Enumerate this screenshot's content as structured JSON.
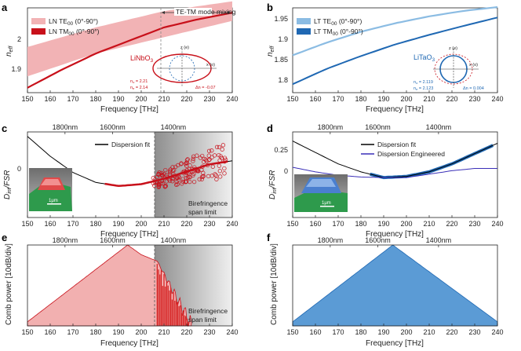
{
  "panels": {
    "a": {
      "letter": "a",
      "annotation": "TE-TM mode mixing",
      "material": "LiNbO",
      "material_sub": "3",
      "legend": [
        {
          "label": "LN TE",
          "sub": "00",
          "suffix": " (0°-90°)"
        },
        {
          "label": "LN TM",
          "sub": "00",
          "suffix": " (0°-90°)"
        }
      ],
      "no_label": "n",
      "no_sub": "o",
      "no_val": " = 2.21",
      "ne_label": "n",
      "ne_sub": "e",
      "ne_val": " = 2.14",
      "dn_label": "Δn = -0.07"
    },
    "b": {
      "letter": "b",
      "material": "LiTaO",
      "material_sub": "3",
      "legend": [
        {
          "label": "LT TE",
          "sub": "00",
          "suffix": " (0°-90°)"
        },
        {
          "label": "LT TM",
          "sub": "00",
          "suffix": " (0°-90°)"
        }
      ],
      "no_label": "n",
      "no_sub": "o",
      "no_val": " = 2.119",
      "ne_label": "n",
      "ne_sub": "e",
      "ne_val": " = 2.123",
      "dn_label": "Δn = 0.004"
    },
    "c": {
      "letter": "c",
      "legend": [
        "Dispersion fit"
      ],
      "shade_label": [
        "Birefringence",
        "span limit"
      ],
      "scale": "1μm"
    },
    "d": {
      "letter": "d",
      "legend": [
        "Dispersion fit",
        "Dispersion Engineered"
      ],
      "scale": "1μm"
    },
    "e": {
      "letter": "e",
      "shade_label": [
        "Birefringence",
        "span limit"
      ]
    },
    "f": {
      "letter": "f"
    }
  },
  "axis_text": {
    "xlabel": "Frequency [THz]",
    "neff": "n",
    "neff_sub": "eff",
    "dint": "D",
    "dint_sub": "int",
    "dint_tail": "/FSR",
    "comb": "Comb power [10dB/div]",
    "wavelengths": [
      "1800nm",
      "1600nm",
      "1400nm"
    ],
    "x_ticks": [
      "150",
      "160",
      "170",
      "180",
      "190",
      "200",
      "210",
      "220",
      "230",
      "240"
    ],
    "ya_ticks": [
      "1.9",
      "2"
    ],
    "yb_ticks": [
      "1.8",
      "1.85",
      "1.9",
      "1.95"
    ],
    "yc_ticks": [
      "0"
    ],
    "yd_ticks": [
      "0",
      "0.25"
    ]
  },
  "colors": {
    "ln_red": "#c8101a",
    "ln_band": "#f2b3b5",
    "lt_light": "#8bbce3",
    "lt_dark": "#1f68b3",
    "comb_red": "#f2b0b0",
    "comb_blue": "#5b9bd5",
    "purple": "#3a2fb8"
  },
  "chart_data": [
    {
      "panel": "a",
      "type": "line",
      "xlabel": "Frequency [THz]",
      "ylabel": "n_eff",
      "xlim": [
        150,
        240
      ],
      "ylim": [
        1.82,
        2.08
      ],
      "series": [
        {
          "name": "LN TE00 (0°-90°)",
          "kind": "band",
          "x": [
            150,
            180,
            210,
            240
          ],
          "lower": [
            1.87,
            1.94,
            1.99,
            2.04
          ],
          "upper": [
            1.96,
            2.02,
            2.07,
            2.1
          ]
        },
        {
          "name": "LN TM00 (0°-90°)",
          "x": [
            150,
            165,
            180,
            195,
            210,
            225,
            240
          ],
          "values": [
            1.835,
            1.89,
            1.94,
            1.98,
            2.02,
            2.045,
            2.065
          ]
        }
      ]
    },
    {
      "panel": "b",
      "type": "line",
      "xlabel": "Frequency [THz]",
      "ylabel": "n_eff",
      "xlim": [
        150,
        240
      ],
      "ylim": [
        1.76,
        1.98
      ],
      "series": [
        {
          "name": "LT TE00 (0°-90°)",
          "x": [
            150,
            165,
            180,
            195,
            210,
            225,
            240
          ],
          "values": [
            1.857,
            1.89,
            1.918,
            1.94,
            1.958,
            1.972,
            1.982
          ]
        },
        {
          "name": "LT TM00 (0°-90°)",
          "x": [
            150,
            165,
            180,
            195,
            210,
            225,
            240
          ],
          "values": [
            1.782,
            1.822,
            1.855,
            1.885,
            1.91,
            1.933,
            1.955
          ]
        }
      ]
    },
    {
      "panel": "c",
      "type": "scatter",
      "xlabel": "Frequency [THz]",
      "ylabel": "D_int/FSR",
      "xlim": [
        150,
        240
      ],
      "ylim": [
        -0.35,
        0.6
      ],
      "series": [
        {
          "name": "Dispersion fit",
          "x": [
            150,
            160,
            170,
            180,
            190,
            200,
            210,
            220,
            230,
            240
          ],
          "values": [
            0.55,
            0.33,
            0.15,
            0.04,
            0.0,
            0.02,
            0.08,
            0.16,
            0.24,
            0.28
          ]
        }
      ]
    },
    {
      "panel": "d",
      "type": "line",
      "xlabel": "Frequency [THz]",
      "ylabel": "D_int/FSR",
      "xlim": [
        150,
        240
      ],
      "ylim": [
        -0.35,
        0.4
      ],
      "series": [
        {
          "name": "Dispersion fit",
          "x": [
            150,
            160,
            170,
            180,
            190,
            200,
            210,
            220,
            230,
            240
          ],
          "values": [
            0.32,
            0.22,
            0.12,
            0.05,
            0.0,
            0.01,
            0.05,
            0.12,
            0.21,
            0.3
          ]
        },
        {
          "name": "Dispersion Engineered",
          "x": [
            150,
            160,
            170,
            180,
            190,
            200,
            210,
            220,
            230,
            240
          ],
          "values": [
            0.09,
            0.05,
            0.02,
            0.005,
            0.0,
            0.0,
            0.03,
            0.06,
            0.08,
            0.08
          ]
        }
      ]
    },
    {
      "panel": "e",
      "type": "area",
      "xlabel": "Frequency [THz]",
      "ylabel": "Comb power [10dB/div]",
      "xlim": [
        150,
        240
      ],
      "series": [
        {
          "x": [
            150,
            194,
            200,
            207,
            222
          ],
          "values": [
            0.05,
            1.0,
            0.88,
            0.8,
            0.0
          ]
        }
      ]
    },
    {
      "panel": "f",
      "type": "area",
      "xlabel": "Frequency [THz]",
      "ylabel": "Comb power [10dB/div]",
      "xlim": [
        150,
        240
      ],
      "series": [
        {
          "x": [
            150,
            194,
            240
          ],
          "values": [
            0.05,
            1.0,
            0.05
          ]
        }
      ]
    }
  ]
}
